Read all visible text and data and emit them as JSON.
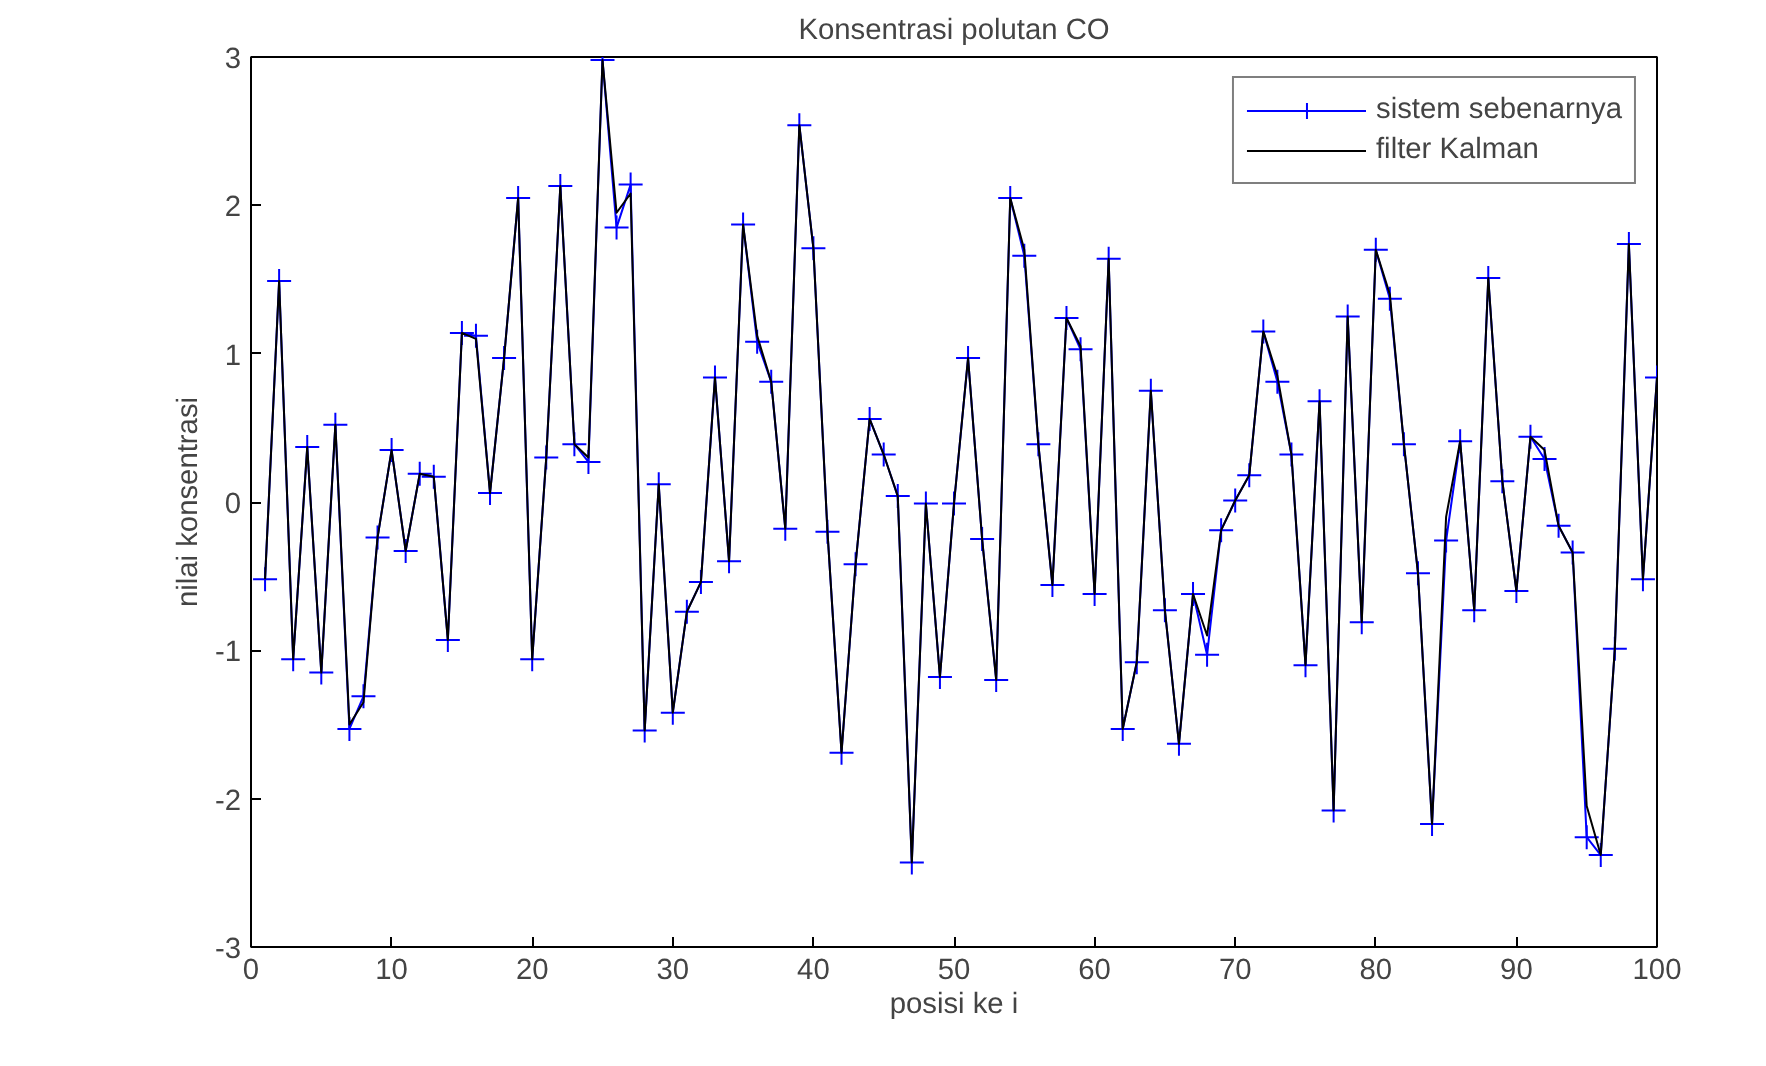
{
  "chart_data": {
    "type": "line",
    "title": "Konsentrasi polutan CO",
    "xlabel": "posisi ke i",
    "ylabel": "nilai konsentrasi",
    "x": [
      1,
      2,
      3,
      4,
      5,
      6,
      7,
      8,
      9,
      10,
      11,
      12,
      13,
      14,
      15,
      16,
      17,
      18,
      19,
      20,
      21,
      22,
      23,
      24,
      25,
      26,
      27,
      28,
      29,
      30,
      31,
      32,
      33,
      34,
      35,
      36,
      37,
      38,
      39,
      40,
      41,
      42,
      43,
      44,
      45,
      46,
      47,
      48,
      49,
      50,
      51,
      52,
      53,
      54,
      55,
      56,
      57,
      58,
      59,
      60,
      61,
      62,
      63,
      64,
      65,
      66,
      67,
      68,
      69,
      70,
      71,
      72,
      73,
      74,
      75,
      76,
      77,
      78,
      79,
      80,
      81,
      82,
      83,
      84,
      85,
      86,
      87,
      88,
      89,
      90,
      91,
      92,
      93,
      94,
      95,
      96,
      97,
      98,
      99,
      100
    ],
    "series": [
      {
        "name": "sistem sebenarnya",
        "color": "#0000ff",
        "marker": "cross",
        "values": [
          -0.52,
          1.49,
          -1.06,
          0.37,
          -1.15,
          0.52,
          -1.53,
          -1.31,
          -0.24,
          0.35,
          -0.33,
          0.19,
          0.17,
          -0.93,
          1.14,
          1.12,
          0.06,
          0.97,
          2.05,
          -1.06,
          0.3,
          2.13,
          0.39,
          0.27,
          2.98,
          1.85,
          2.14,
          -1.54,
          0.12,
          -1.42,
          -0.74,
          -0.54,
          0.84,
          -0.4,
          1.87,
          1.08,
          0.81,
          -0.18,
          2.54,
          1.71,
          -0.2,
          -1.69,
          -0.42,
          0.56,
          0.32,
          0.04,
          -2.43,
          -0.01,
          -1.18,
          -0.01,
          0.97,
          -0.25,
          -1.2,
          2.05,
          1.66,
          0.39,
          -0.56,
          1.24,
          1.03,
          -0.62,
          1.64,
          -1.53,
          -1.08,
          0.75,
          -0.73,
          -1.63,
          -0.62,
          -1.03,
          -0.19,
          0.01,
          0.18,
          1.15,
          0.81,
          0.32,
          -1.1,
          0.68,
          -2.08,
          1.25,
          -0.81,
          1.7,
          1.37,
          0.39,
          -0.48,
          -2.17,
          -0.26,
          0.41,
          -0.73,
          1.51,
          0.14,
          -0.6,
          0.44,
          0.29,
          -0.16,
          -0.34,
          -2.26,
          -2.38,
          -0.99,
          1.74,
          -0.52,
          0.84
        ]
      },
      {
        "name": "filter Kalman",
        "color": "#000000",
        "marker": "none",
        "values": [
          -0.52,
          1.49,
          -1.06,
          0.37,
          -1.15,
          0.52,
          -1.5,
          -1.35,
          -0.24,
          0.35,
          -0.33,
          0.19,
          0.17,
          -0.93,
          1.14,
          1.1,
          0.06,
          0.97,
          2.05,
          -1.06,
          0.3,
          2.13,
          0.39,
          0.3,
          2.98,
          1.95,
          2.08,
          -1.54,
          0.12,
          -1.42,
          -0.74,
          -0.54,
          0.84,
          -0.4,
          1.87,
          1.12,
          0.81,
          -0.18,
          2.54,
          1.71,
          -0.2,
          -1.69,
          -0.42,
          0.56,
          0.32,
          0.04,
          -2.43,
          -0.01,
          -1.18,
          -0.01,
          0.97,
          -0.25,
          -1.2,
          2.05,
          1.7,
          0.39,
          -0.56,
          1.24,
          1.05,
          -0.62,
          1.64,
          -1.53,
          -1.08,
          0.75,
          -0.73,
          -1.63,
          -0.62,
          -0.9,
          -0.19,
          0.01,
          0.18,
          1.15,
          0.85,
          0.32,
          -1.1,
          0.68,
          -2.08,
          1.25,
          -0.81,
          1.7,
          1.4,
          0.39,
          -0.48,
          -2.17,
          -0.1,
          0.41,
          -0.73,
          1.51,
          0.14,
          -0.6,
          0.44,
          0.35,
          -0.16,
          -0.34,
          -2.05,
          -2.38,
          -0.99,
          1.74,
          -0.52,
          0.84
        ]
      }
    ],
    "xlim": [
      0,
      100
    ],
    "xticks": [
      0,
      10,
      20,
      30,
      40,
      50,
      60,
      70,
      80,
      90,
      100
    ],
    "ylim": [
      -3,
      3
    ],
    "yticks": [
      -3,
      -2,
      -1,
      0,
      1,
      2,
      3
    ],
    "grid": false,
    "legend": "top right",
    "line_style": "solid"
  }
}
